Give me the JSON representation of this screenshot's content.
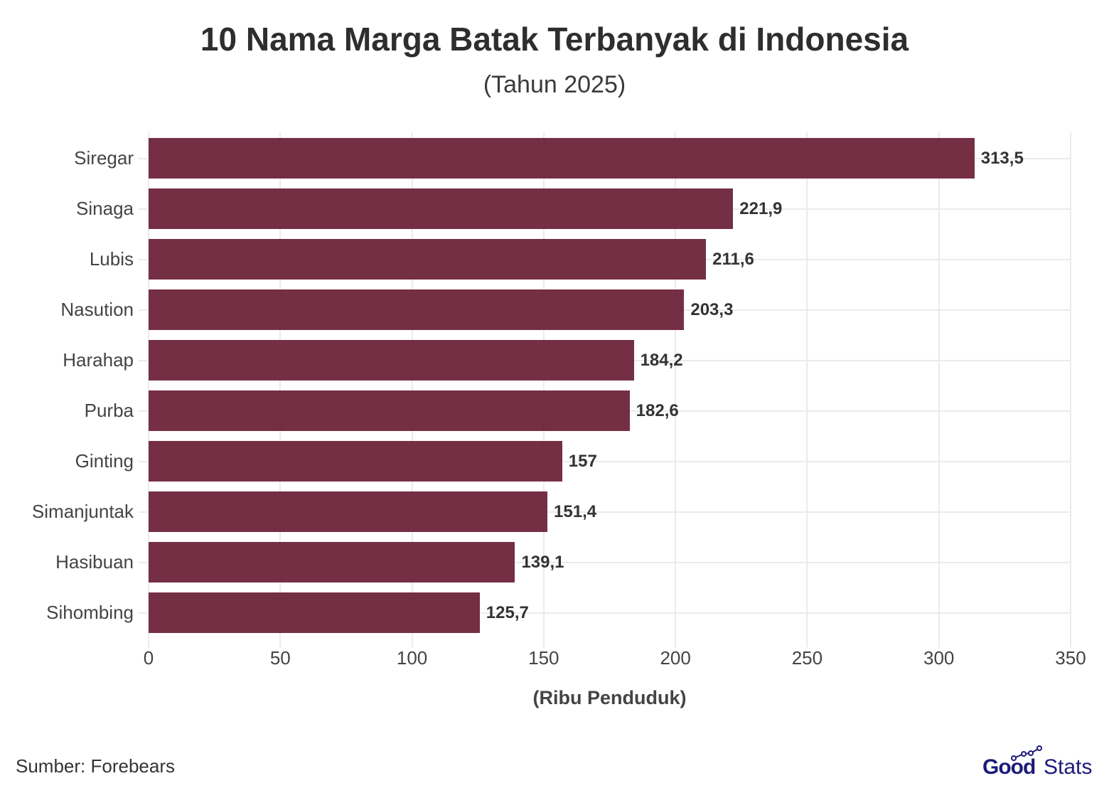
{
  "chart_data": {
    "type": "bar",
    "orientation": "horizontal",
    "title": "10 Nama Marga Batak Terbanyak di Indonesia",
    "subtitle": "(Tahun 2025)",
    "xlabel": "(Ribu Penduduk)",
    "ylabel": "",
    "categories": [
      "Siregar",
      "Sinaga",
      "Lubis",
      "Nasution",
      "Harahap",
      "Purba",
      "Ginting",
      "Simanjuntak",
      "Hasibuan",
      "Sihombing"
    ],
    "values": [
      313.5,
      221.9,
      211.6,
      203.3,
      184.2,
      182.6,
      157,
      151.4,
      139.1,
      125.7
    ],
    "value_labels": [
      "313,5",
      "221,9",
      "211,6",
      "203,3",
      "184,2",
      "182,6",
      "157",
      "151,4",
      "139,1",
      "125,7"
    ],
    "xlim": [
      0,
      350
    ],
    "xticks": [
      "0",
      "50",
      "100",
      "150",
      "200",
      "250",
      "300",
      "350"
    ],
    "grid": true,
    "legend": null,
    "bar_color": "#6b1f37"
  },
  "footer": {
    "source": "Sumber: Forebears",
    "logo_good": "Good",
    "logo_stats": "Stats"
  }
}
